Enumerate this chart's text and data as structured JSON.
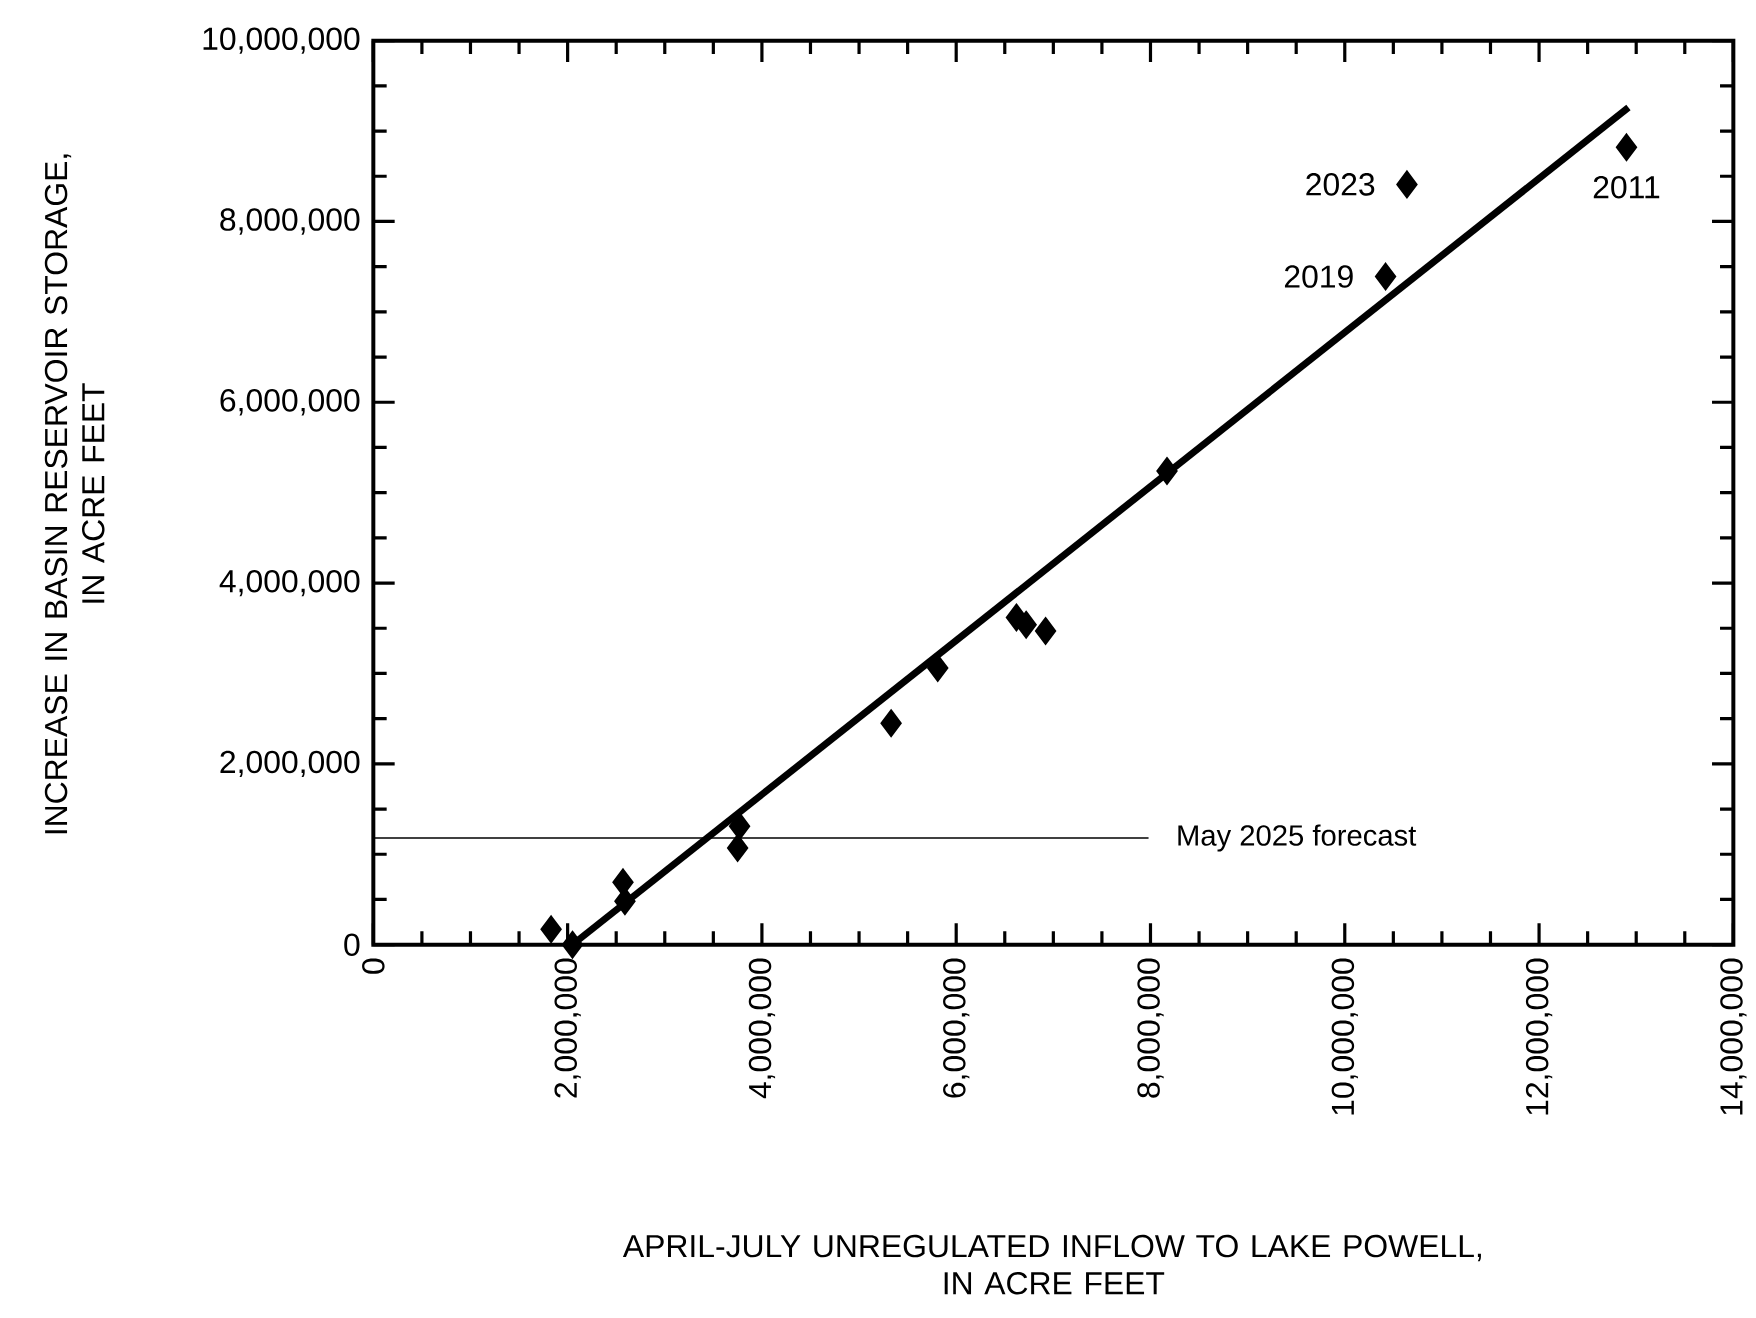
{
  "chart_data": {
    "type": "scatter",
    "xlabel": "APRIL-JULY UNREGULATED INFLOW TO LAKE POWELL,\nIN ACRE FEET",
    "ylabel": "INCREASE IN BASIN RESERVOIR STORAGE,\nIN ACRE FEET",
    "marker": "diamond",
    "series": [
      {
        "color": "#000000",
        "x": [
          1830000,
          2050000,
          2570000,
          2590000,
          3770000,
          3750000,
          5330000,
          5810000,
          6620000,
          6720000,
          6920000,
          8170000,
          10420000,
          10640000,
          12900000
        ],
        "values": [
          170000,
          0,
          690000,
          480000,
          1310000,
          1070000,
          2450000,
          3060000,
          3620000,
          3540000,
          3470000,
          5240000,
          7390000,
          8410000,
          8820000
        ]
      },
      {
        "type": "line",
        "color": "#000000",
        "marker": "none",
        "x": [
          2050000,
          12920000
        ],
        "values": [
          0,
          9260000
        ]
      }
    ],
    "xlim": [
      0,
      14000000
    ],
    "ylim": [
      0,
      10000000
    ],
    "xticks": [
      {
        "value": 0,
        "label": "0"
      },
      {
        "value": 2000000,
        "label": "2,000,000"
      },
      {
        "value": 4000000,
        "label": "4,000,000"
      },
      {
        "value": 6000000,
        "label": "6,000,000"
      },
      {
        "value": 8000000,
        "label": "8,000,000"
      },
      {
        "value": 10000000,
        "label": "10,000,000"
      },
      {
        "value": 12000000,
        "label": "12,000,000"
      },
      {
        "value": 14000000,
        "label": "14,000,000"
      }
    ],
    "yticks": [
      {
        "value": 0,
        "label": "0"
      },
      {
        "value": 2000000,
        "label": "2,000,000"
      },
      {
        "value": 4000000,
        "label": "4,000,000"
      },
      {
        "value": 6000000,
        "label": "6,000,000"
      },
      {
        "value": 8000000,
        "label": "8,000,000"
      },
      {
        "value": 10000000,
        "label": "10,000,000"
      }
    ],
    "ref_lines": [
      {
        "axis": "y",
        "value": 1180000,
        "label": "May 2025 forecast"
      }
    ],
    "annotations": [
      {
        "text": "2023",
        "x": 10640000,
        "y": 8410000
      },
      {
        "text": "2019",
        "x": 10420000,
        "y": 7390000
      },
      {
        "text": "2011",
        "x": 12900000,
        "y": 8820000
      }
    ]
  }
}
